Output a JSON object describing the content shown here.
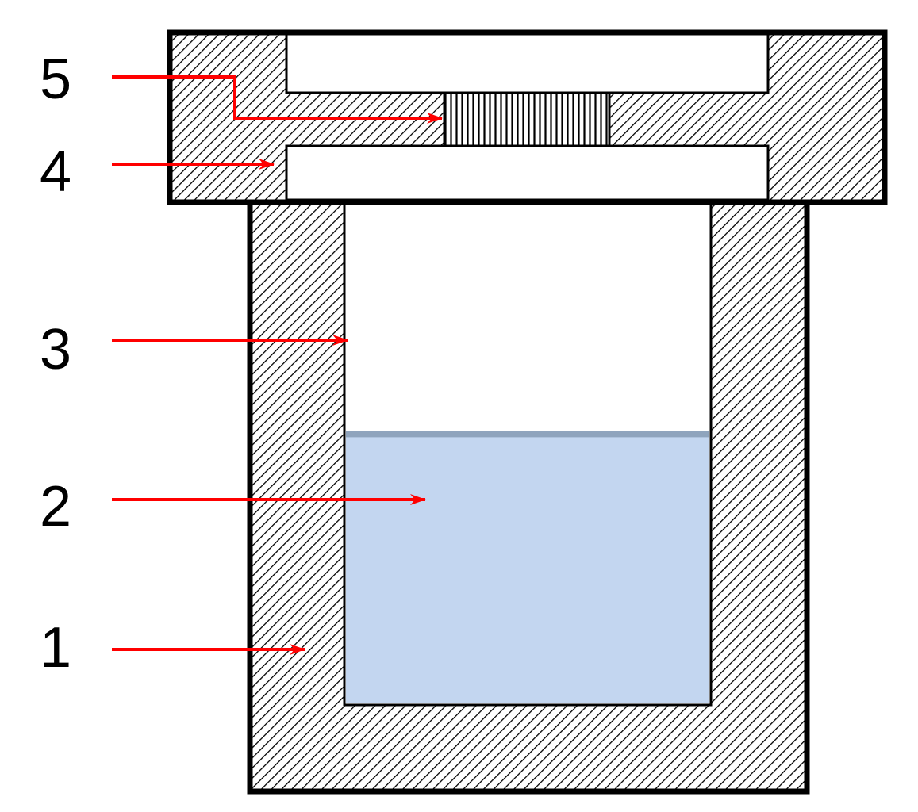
{
  "labels": [
    {
      "number": "1"
    },
    {
      "number": "2"
    },
    {
      "number": "3"
    },
    {
      "number": "4"
    },
    {
      "number": "5"
    }
  ],
  "colors": {
    "outline": "#000000",
    "hatch": "#000000",
    "cavity": "#ffffff",
    "liquid": "#c3d6f0",
    "liquid_surface": "#8fa4bd",
    "arrow": "#ff0000"
  },
  "liquid_fill_fraction": 0.53
}
